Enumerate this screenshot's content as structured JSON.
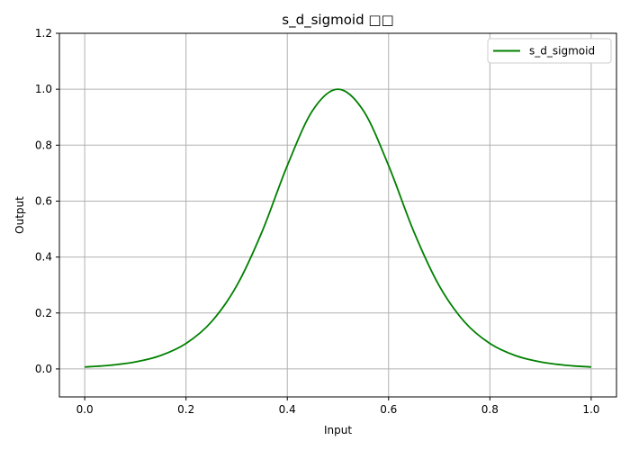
{
  "chart_data": {
    "type": "line",
    "title": "s_d_sigmoid □□",
    "xlabel": "Input",
    "ylabel": "Output",
    "xlim": [
      -0.05,
      1.05
    ],
    "ylim": [
      -0.1,
      1.2
    ],
    "xticks": [
      0.0,
      0.2,
      0.4,
      0.6,
      0.8,
      1.0
    ],
    "xtick_labels": [
      "0.0",
      "0.2",
      "0.4",
      "0.6",
      "0.8",
      "1.0"
    ],
    "yticks": [
      0.0,
      0.2,
      0.4,
      0.6,
      0.8,
      1.0,
      1.2
    ],
    "ytick_labels": [
      "0.0",
      "0.2",
      "0.4",
      "0.6",
      "0.8",
      "1.0",
      "1.2"
    ],
    "grid": true,
    "legend_position": "top-right",
    "series": [
      {
        "name": "s_d_sigmoid",
        "color": "#008000",
        "x": [
          0.0,
          0.05,
          0.1,
          0.15,
          0.2,
          0.25,
          0.3,
          0.35,
          0.4,
          0.45,
          0.5,
          0.55,
          0.6,
          0.65,
          0.7,
          0.75,
          0.8,
          0.85,
          0.9,
          0.95,
          1.0
        ],
        "y": [
          0.007,
          0.013,
          0.025,
          0.048,
          0.091,
          0.168,
          0.297,
          0.49,
          0.727,
          0.924,
          1.0,
          0.924,
          0.727,
          0.49,
          0.297,
          0.168,
          0.091,
          0.048,
          0.025,
          0.013,
          0.007
        ]
      }
    ]
  }
}
